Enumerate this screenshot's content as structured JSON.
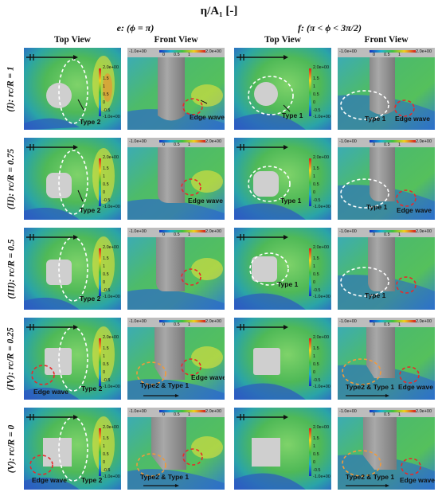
{
  "title": "η/A₁ [-]",
  "phases": [
    "e: (ϕ = π)",
    "f: (π < ϕ < 3π/2)"
  ],
  "column_headers": [
    "Top View",
    "Front View",
    "Top View",
    "Front View"
  ],
  "row_labels": [
    "(I): rc/R = 1",
    "(II): rc/R = 0.75",
    "(III): rc/R = 0.5",
    "(IV): rc/R = 0.25",
    "(V): rc/R = 0"
  ],
  "colorbar": {
    "min": "-1.0e+00",
    "max": "2.0e+00",
    "ticks": [
      "1.5",
      "1",
      "0.5",
      "0",
      "-0.5"
    ],
    "top_ticks": [
      "0",
      "0.5",
      "1"
    ]
  },
  "annotations": {
    "type1": "Type 1",
    "type2": "Type 2",
    "edge_wave": "Edge wave",
    "type2_type1": "Type2 & Type 1"
  },
  "colors": {
    "field_green": "#5cc25a",
    "field_blue": "#2f6fd0",
    "field_yellow": "#e6e23a",
    "cylinder_gray": "#bdbdbd",
    "dashed_white": "#ffffff",
    "dashed_red": "#e8292b",
    "dashed_orange": "#f29a3a"
  }
}
